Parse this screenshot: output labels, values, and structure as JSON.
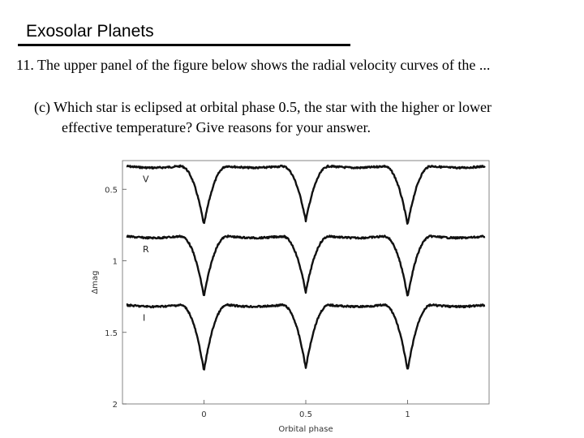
{
  "slide": {
    "title": "Exosolar Planets",
    "question": "11. The upper panel of the figure below shows the radial velocity curves of the ...",
    "sub_question_line1": "(c) Which star is eclipsed at orbital phase 0.5, the star with the higher or lower",
    "sub_question_line2": "effective temperature?  Give reasons for your answer."
  },
  "chart_data": {
    "type": "line",
    "title": "",
    "xlabel": "Orbital phase",
    "ylabel": "Δmag",
    "xlim": [
      -0.4,
      1.4
    ],
    "ylim": [
      0.3,
      2.0
    ],
    "y_inverted": true,
    "x_ticks": [
      0,
      0.5,
      1
    ],
    "x_tick_labels": [
      "0",
      "0.5",
      "1"
    ],
    "y_ticks": [
      0.5,
      1,
      1.5,
      2
    ],
    "y_tick_labels": [
      "0.5",
      "1",
      "1.5",
      "2"
    ],
    "grid": false,
    "line_color": "#111111",
    "series": [
      {
        "name": "V",
        "baseline": 0.33,
        "primary_min": 0.75,
        "secondary_min": 0.72
      },
      {
        "name": "R",
        "baseline": 0.82,
        "primary_min": 1.25,
        "secondary_min": 1.22
      },
      {
        "name": "I",
        "baseline": 1.3,
        "primary_min": 1.77,
        "secondary_min": 1.75
      }
    ],
    "eclipse_half_width": 0.12,
    "primary_eclipse_phases": [
      0,
      1
    ],
    "secondary_eclipse_phases": [
      0.5
    ]
  }
}
